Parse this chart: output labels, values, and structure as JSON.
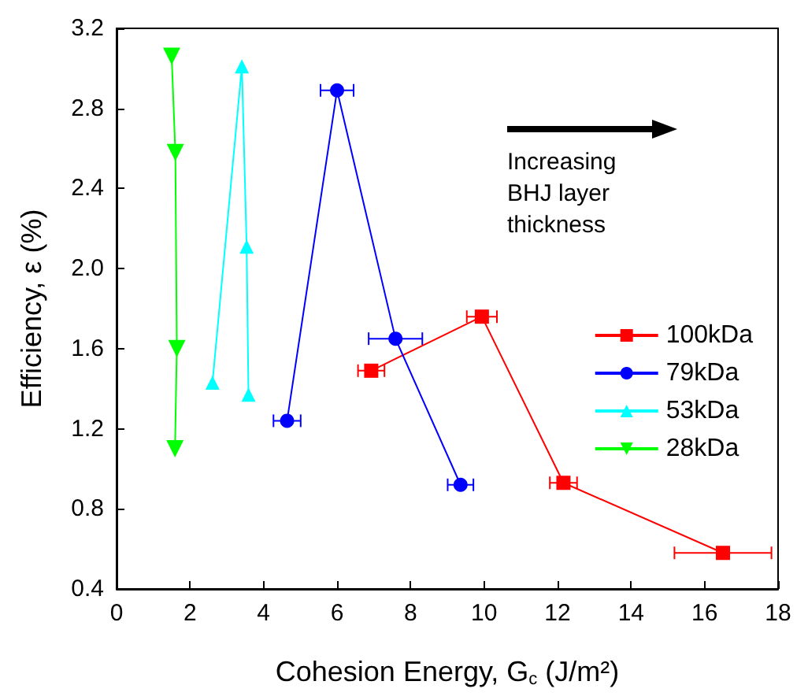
{
  "chart_data": {
    "type": "line",
    "xlabel": "Cohesion Energy, G$_{c}$ (J/m²)",
    "ylabel": "Efficiency, ε (%)",
    "xlim": [
      0,
      18
    ],
    "xticks": [
      0,
      2,
      4,
      6,
      8,
      10,
      12,
      14,
      16,
      18
    ],
    "ylim": [
      0.4,
      3.2
    ],
    "yticks": [
      0.4,
      0.8,
      1.2,
      1.6,
      {
        "value": 2,
        "label": "2.0"
      },
      2.4,
      2.8,
      3.2
    ],
    "legend": "right",
    "grid": false,
    "line_style": "solid",
    "annotations": [
      "Increasing BHJ layer thickness"
    ],
    "series": [
      {
        "name": "100kDa",
        "color": "#ff0000",
        "marker": "square",
        "x": [
          6.93,
          9.94,
          12.16,
          16.5
        ],
        "values": [
          1.49,
          1.76,
          0.93,
          0.58
        ],
        "xerrors": [
          0.36,
          0.41,
          0.37,
          1.32
        ]
      },
      {
        "name": "79kDa",
        "color": "#0000ff",
        "marker": "circle",
        "x": [
          4.64,
          6.0,
          7.59,
          9.36
        ],
        "values": [
          1.24,
          2.89,
          1.65,
          0.92
        ],
        "xerrors": [
          0.37,
          0.45,
          0.73,
          0.35
        ]
      },
      {
        "name": "53kDa",
        "color": "#00ffff",
        "marker": "triangle",
        "x": [
          2.61,
          3.41,
          3.54,
          3.59
        ],
        "values": [
          1.43,
          3.01,
          2.11,
          1.37
        ]
      },
      {
        "name": "28kDa",
        "color": "#00ff00",
        "marker": "triangle-down",
        "x": [
          1.5,
          1.6,
          1.64,
          1.59
        ],
        "values": [
          3.06,
          2.58,
          1.6,
          1.1
        ]
      }
    ]
  }
}
